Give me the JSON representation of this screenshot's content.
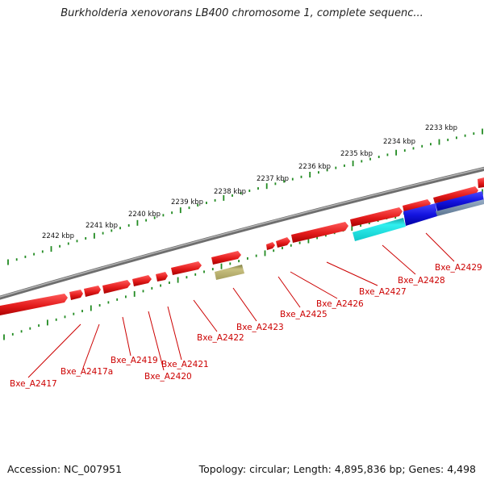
{
  "title": "Burkholderia xenovorans LB400 chromosome 1, complete sequenc...",
  "accession": "Accession: NC_007951",
  "summary": "Topology: circular; Length: 4,895,836 bp; Genes: 4,498",
  "colors": {
    "backbone": "#8a8a8a",
    "tick": "#228b22",
    "gene_red": "#e31b1b",
    "gene_olive": "#b8b070",
    "gene_cyan": "#16e6e6",
    "gene_blue": "#1a1ae6",
    "gene_slate": "#6f8aa6",
    "label": "#cc0000"
  },
  "kbp_labels": [
    "2233 kbp",
    "2234 kbp",
    "2235 kbp",
    "2236 kbp",
    "2237 kbp",
    "2238 kbp",
    "2239 kbp",
    "2240 kbp",
    "2241 kbp",
    "2242 kbp"
  ],
  "gene_labels": [
    "Bxe_A2417",
    "Bxe_A2417a",
    "Bxe_A2419",
    "Bxe_A2420",
    "Bxe_A2421",
    "Bxe_A2422",
    "Bxe_A2423",
    "Bxe_A2425",
    "Bxe_A2426",
    "Bxe_A2427",
    "Bxe_A2428",
    "Bxe_A2429"
  ]
}
